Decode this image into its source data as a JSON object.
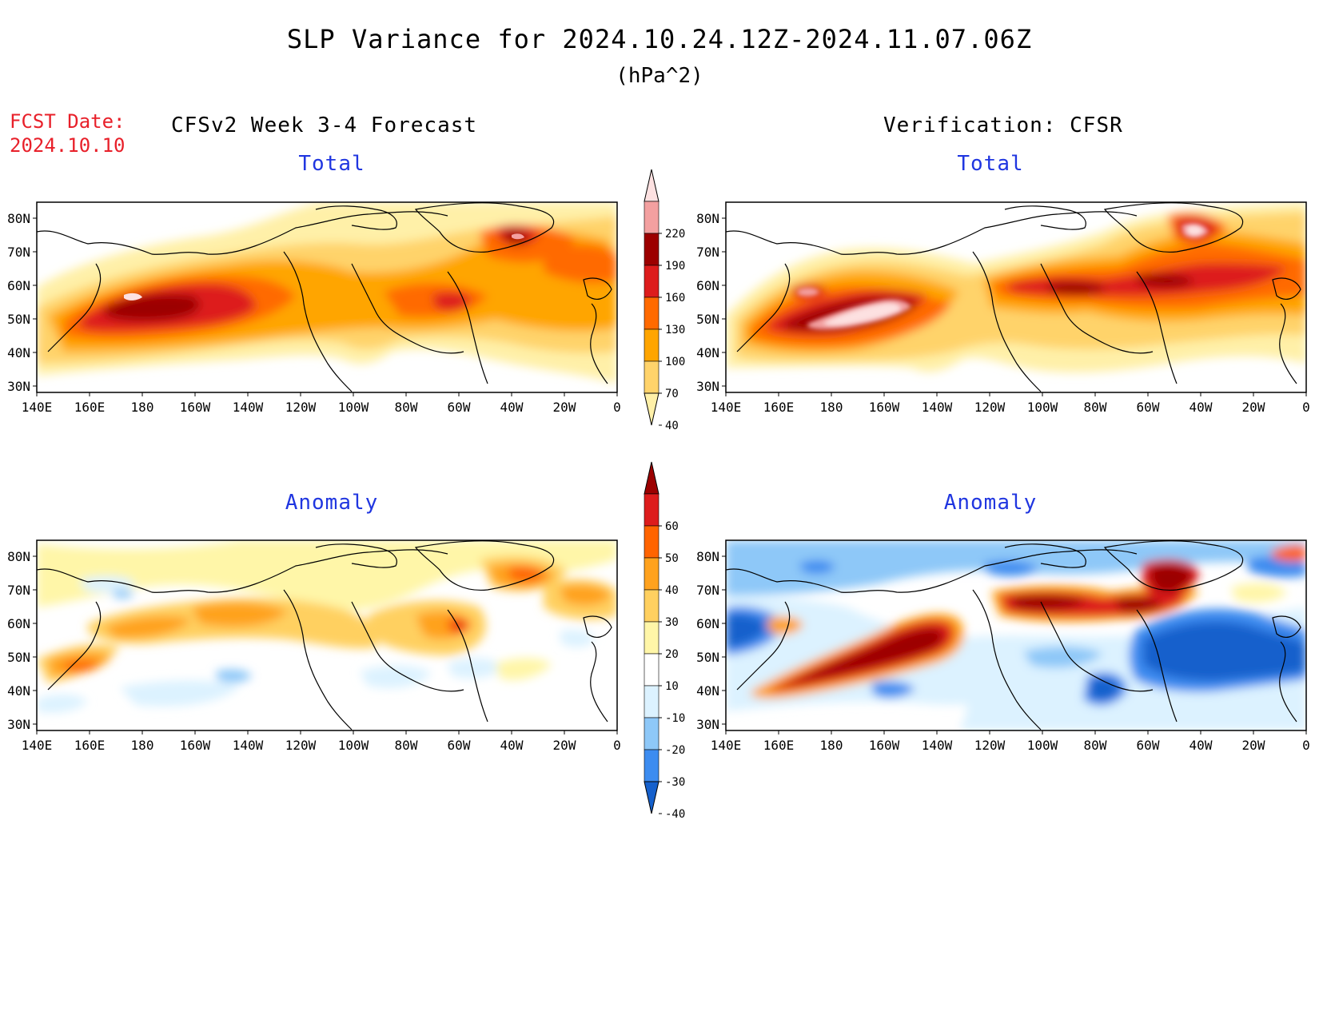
{
  "title": "SLP Variance for 2024.10.24.12Z-2024.11.07.06Z",
  "units": "(hPa^2)",
  "fcst_label": "FCST Date:",
  "fcst_date": "2024.10.10",
  "left_column": "CFSv2 Week 3-4 Forecast",
  "right_column": "Verification: CFSR",
  "panels": {
    "top_left": "Total",
    "top_right": "Total",
    "bottom_left": "Anomaly",
    "bottom_right": "Anomaly"
  },
  "lat_ticks": [
    "80N",
    "70N",
    "60N",
    "50N",
    "40N",
    "30N"
  ],
  "lon_ticks": [
    "140E",
    "160E",
    "180",
    "160W",
    "140W",
    "120W",
    "100W",
    "80W",
    "60W",
    "40W",
    "20W",
    "0"
  ],
  "total_colorbar": {
    "labels": [
      "40",
      "70",
      "100",
      "130",
      "160",
      "190",
      "220"
    ],
    "colors": [
      "#fff0a8",
      "#ffd36b",
      "#ffa500",
      "#ff6a00",
      "#dd1c1c",
      "#9c0000",
      "#f3a0a0",
      "#fde1e1"
    ]
  },
  "anomaly_colorbar": {
    "labels": [
      "-40",
      "-30",
      "-20",
      "-10",
      "10",
      "20",
      "30",
      "40",
      "50",
      "60"
    ],
    "colors": [
      "#1560cc",
      "#3c8cf0",
      "#8ec8f8",
      "#dcf2ff",
      "#ffffff",
      "#fff6a8",
      "#ffd060",
      "#ffa21e",
      "#ff6400",
      "#dd1c1c",
      "#9c0000"
    ]
  }
}
